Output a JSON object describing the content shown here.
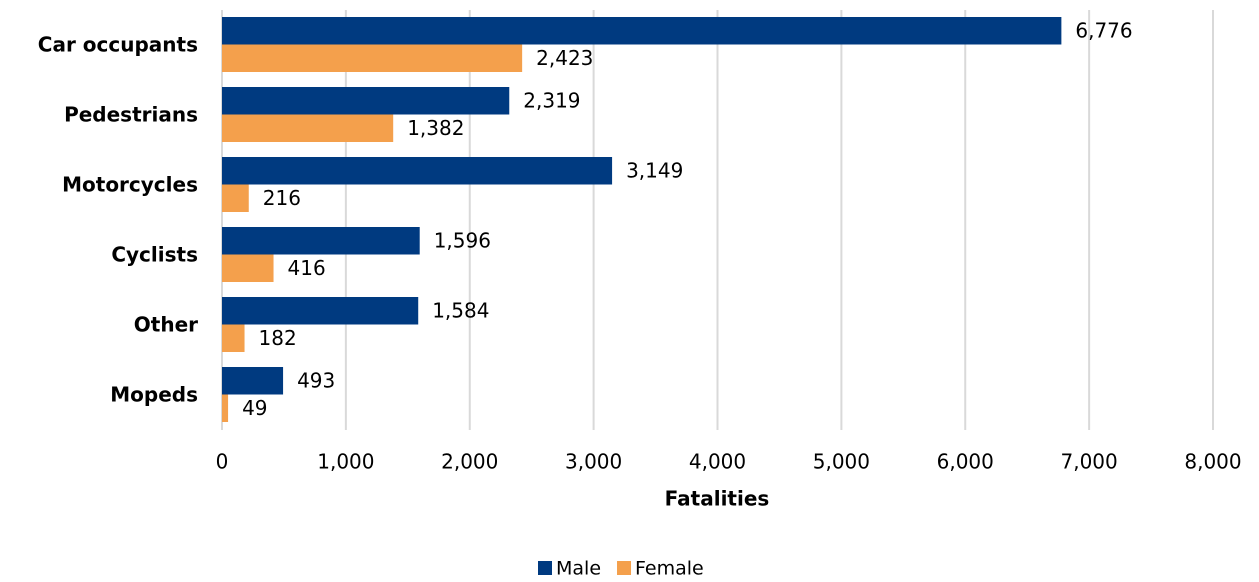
{
  "chart_data": {
    "type": "bar",
    "orientation": "horizontal",
    "categories": [
      "Car occupants",
      "Pedestrians",
      "Motorcycles",
      "Cyclists",
      "Other",
      "Mopeds"
    ],
    "series": [
      {
        "name": "Male",
        "color": "#003a80",
        "values": [
          6776,
          2319,
          3149,
          1596,
          1584,
          493
        ],
        "value_labels": [
          "6,776",
          "2,319",
          "3,149",
          "1,596",
          "1,584",
          "493"
        ]
      },
      {
        "name": "Female",
        "color": "#f4a04c",
        "values": [
          2423,
          1382,
          216,
          416,
          182,
          49
        ],
        "value_labels": [
          "2,423",
          "1,382",
          "216",
          "416",
          "182",
          "49"
        ]
      }
    ],
    "xlabel": "Fatalities",
    "xlim": [
      0,
      8000
    ],
    "xticks": [
      0,
      {
        "value": 1000,
        "label": "1,000"
      },
      {
        "value": 2000,
        "label": "2,000"
      },
      {
        "value": 3000,
        "label": "3,000"
      },
      {
        "value": 4000,
        "label": "4,000"
      },
      {
        "value": 5000,
        "label": "5,000"
      },
      {
        "value": 6000,
        "label": "6,000"
      },
      {
        "value": 7000,
        "label": "7,000"
      },
      {
        "value": 8000,
        "label": "8,000"
      }
    ],
    "grid": true,
    "legend": "bottom"
  }
}
